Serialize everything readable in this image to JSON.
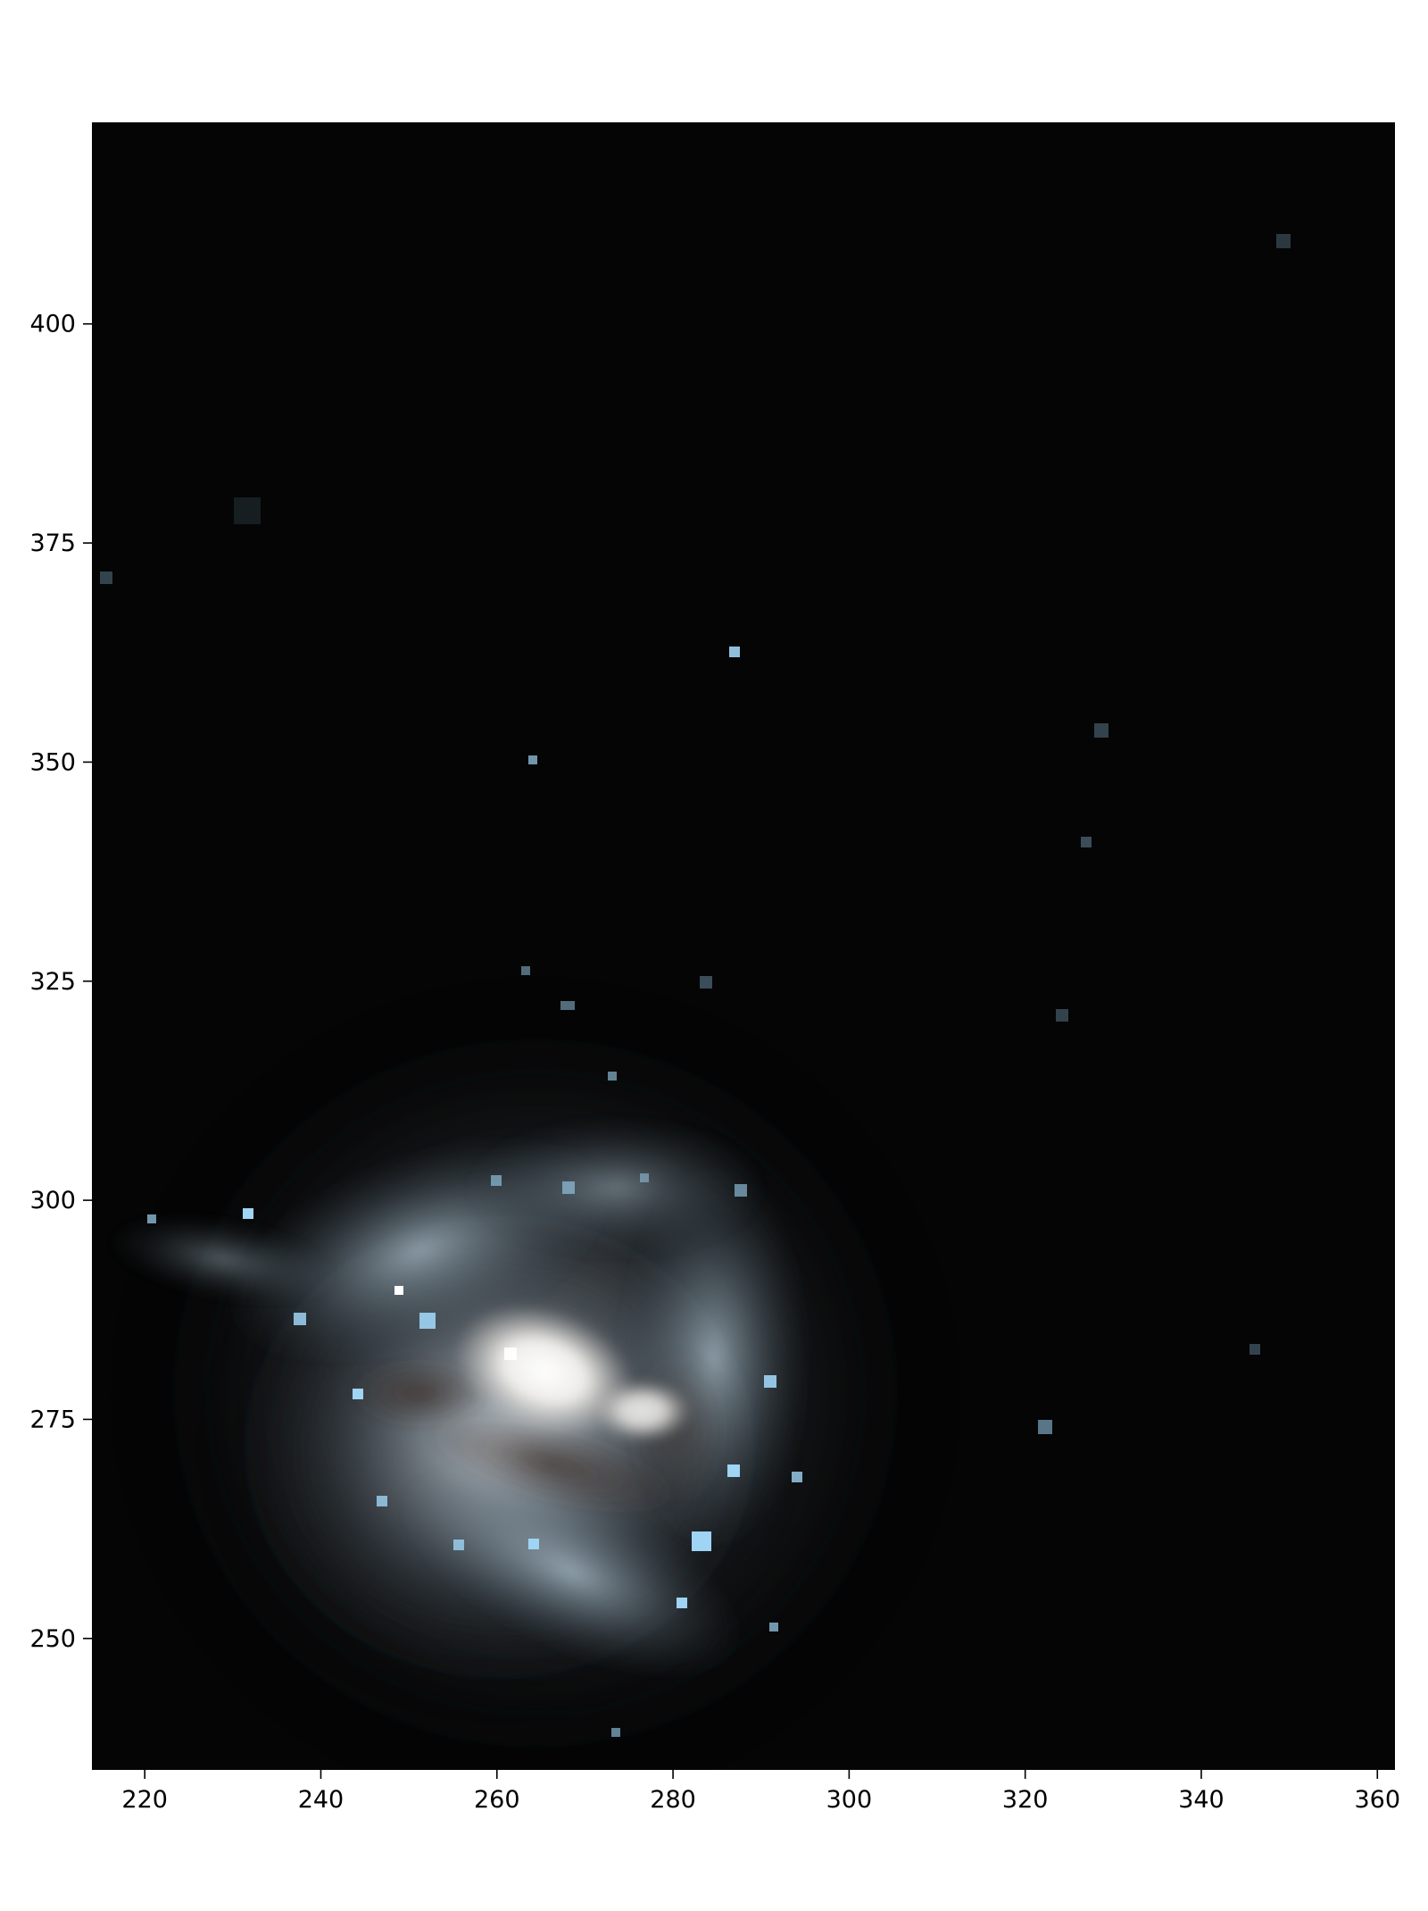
{
  "image": {
    "description_type": "astronomical-image",
    "colormap_note": "RGB composite of a spiral galaxy on black background",
    "colors": {
      "background": "#050505",
      "core": "#ffffff",
      "star_blue": "#8ec9f0",
      "dust": "#4a3f3a"
    }
  },
  "axes": {
    "x": {
      "range": [
        214,
        362
      ],
      "ticks": [
        220,
        240,
        260,
        280,
        300,
        320,
        340,
        360
      ],
      "tick_labels": [
        "220",
        "240",
        "260",
        "280",
        "300",
        "320",
        "340",
        "360"
      ]
    },
    "y": {
      "range": [
        235,
        423
      ],
      "ticks": [
        250,
        275,
        300,
        325,
        350,
        375,
        400
      ],
      "tick_labels": [
        "250",
        "275",
        "300",
        "325",
        "350",
        "375",
        "400"
      ]
    }
  }
}
